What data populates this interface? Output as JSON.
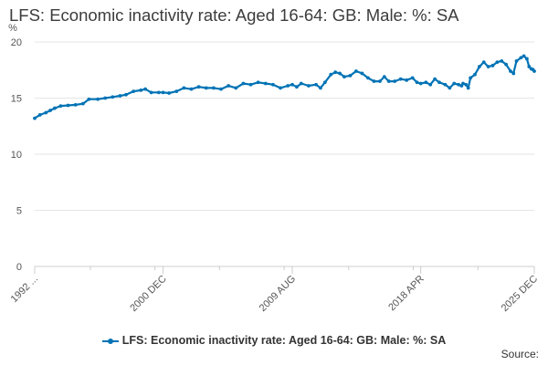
{
  "chart_data": {
    "type": "line",
    "title": "LFS: Economic inactivity rate: Aged 16-64: GB: Male: %: SA",
    "xlabel": "",
    "ylabel": "%",
    "ylim": [
      0,
      20
    ],
    "yticks": [
      0,
      5,
      10,
      15,
      20
    ],
    "x_range": [
      1992.25,
      2025.9
    ],
    "x_tick_labels": [
      {
        "label": "1992 ...",
        "x": 1992.25
      },
      {
        "label": "2000 DEC",
        "x": 2000.9
      },
      {
        "label": "2009 AUG",
        "x": 2009.6
      },
      {
        "label": "2018 APR",
        "x": 2018.25
      },
      {
        "label": "2025 DEC",
        "x": 2025.9
      }
    ],
    "grid": true,
    "legend": "bottom-center",
    "series": [
      {
        "name": "LFS: Economic inactivity rate: Aged 16-64: GB: Male: %: SA",
        "color": "#0073b5",
        "points": [
          [
            1992.25,
            13.2
          ],
          [
            1992.6,
            13.5
          ],
          [
            1993.0,
            13.7
          ],
          [
            1993.3,
            13.9
          ],
          [
            1993.6,
            14.1
          ],
          [
            1994.0,
            14.3
          ],
          [
            1994.5,
            14.35
          ],
          [
            1995.0,
            14.4
          ],
          [
            1995.5,
            14.5
          ],
          [
            1995.9,
            14.9
          ],
          [
            1996.5,
            14.9
          ],
          [
            1997.0,
            15.0
          ],
          [
            1997.5,
            15.1
          ],
          [
            1998.0,
            15.2
          ],
          [
            1998.4,
            15.3
          ],
          [
            1998.9,
            15.6
          ],
          [
            1999.4,
            15.7
          ],
          [
            1999.7,
            15.8
          ],
          [
            2000.1,
            15.5
          ],
          [
            2000.6,
            15.5
          ],
          [
            2000.9,
            15.5
          ],
          [
            2001.3,
            15.45
          ],
          [
            2001.8,
            15.6
          ],
          [
            2002.3,
            15.9
          ],
          [
            2002.8,
            15.8
          ],
          [
            2003.3,
            16.0
          ],
          [
            2003.8,
            15.9
          ],
          [
            2004.3,
            15.9
          ],
          [
            2004.8,
            15.8
          ],
          [
            2005.3,
            16.1
          ],
          [
            2005.8,
            15.9
          ],
          [
            2006.3,
            16.3
          ],
          [
            2006.8,
            16.2
          ],
          [
            2007.3,
            16.4
          ],
          [
            2007.8,
            16.3
          ],
          [
            2008.3,
            16.2
          ],
          [
            2008.8,
            15.9
          ],
          [
            2009.3,
            16.1
          ],
          [
            2009.6,
            16.2
          ],
          [
            2009.9,
            16.0
          ],
          [
            2010.2,
            16.3
          ],
          [
            2010.7,
            16.1
          ],
          [
            2011.2,
            16.2
          ],
          [
            2011.5,
            15.9
          ],
          [
            2011.8,
            16.4
          ],
          [
            2012.2,
            17.1
          ],
          [
            2012.5,
            17.3
          ],
          [
            2012.8,
            17.2
          ],
          [
            2013.1,
            16.9
          ],
          [
            2013.5,
            17.0
          ],
          [
            2013.9,
            17.4
          ],
          [
            2014.3,
            17.2
          ],
          [
            2014.7,
            16.8
          ],
          [
            2015.1,
            16.5
          ],
          [
            2015.5,
            16.5
          ],
          [
            2015.8,
            16.9
          ],
          [
            2016.1,
            16.5
          ],
          [
            2016.5,
            16.5
          ],
          [
            2016.9,
            16.7
          ],
          [
            2017.3,
            16.6
          ],
          [
            2017.7,
            16.8
          ],
          [
            2018.0,
            16.4
          ],
          [
            2018.25,
            16.3
          ],
          [
            2018.6,
            16.4
          ],
          [
            2018.9,
            16.2
          ],
          [
            2019.2,
            16.7
          ],
          [
            2019.5,
            16.4
          ],
          [
            2019.9,
            16.2
          ],
          [
            2020.2,
            15.9
          ],
          [
            2020.5,
            16.3
          ],
          [
            2020.8,
            16.2
          ],
          [
            2021.0,
            16.1
          ],
          [
            2021.1,
            16.3
          ],
          [
            2021.3,
            16.2
          ],
          [
            2021.45,
            15.9
          ],
          [
            2021.6,
            16.8
          ],
          [
            2021.9,
            17.1
          ],
          [
            2022.2,
            17.8
          ],
          [
            2022.5,
            18.2
          ],
          [
            2022.8,
            17.8
          ],
          [
            2023.1,
            17.9
          ],
          [
            2023.4,
            18.2
          ],
          [
            2023.7,
            18.3
          ],
          [
            2024.0,
            18.0
          ],
          [
            2024.3,
            17.4
          ],
          [
            2024.5,
            17.2
          ],
          [
            2024.7,
            18.3
          ],
          [
            2025.0,
            18.6
          ],
          [
            2025.2,
            18.75
          ],
          [
            2025.4,
            18.5
          ],
          [
            2025.55,
            17.8
          ],
          [
            2025.7,
            17.6
          ],
          [
            2025.8,
            17.55
          ],
          [
            2025.9,
            17.4
          ]
        ]
      }
    ]
  },
  "source_label": "Source:"
}
